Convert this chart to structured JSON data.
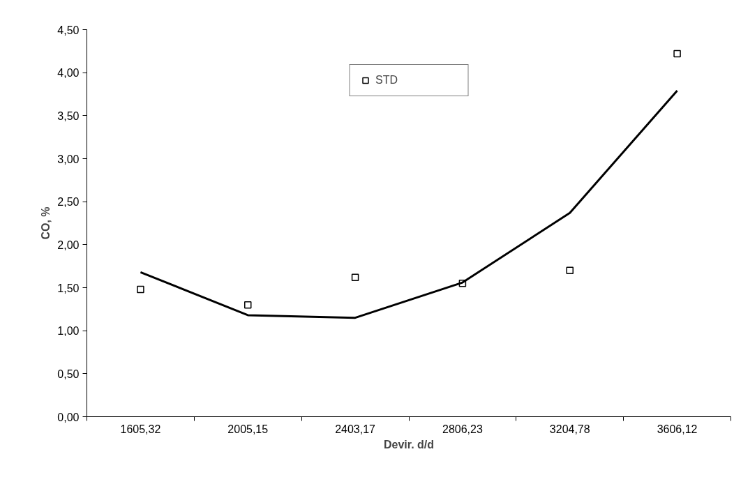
{
  "chart_data": {
    "type": "scatter",
    "xlabel": "Devir. d/d",
    "ylabel": "CO, %",
    "categories": [
      "1605,32",
      "2005,15",
      "2403,17",
      "2806,23",
      "3204,78",
      "3606,12"
    ],
    "series": [
      {
        "name": "STD",
        "color": "#000000",
        "marker": "square",
        "values": [
          1.48,
          1.3,
          1.62,
          1.55,
          1.7,
          4.22
        ]
      },
      {
        "type": "line",
        "color": "#000000",
        "marker": "none",
        "values": [
          1.68,
          1.18,
          1.15,
          1.56,
          2.37,
          3.79
        ]
      }
    ],
    "ylim": [
      0,
      4.5
    ],
    "yticks": [
      {
        "value": 0,
        "label": "0,00"
      },
      {
        "value": 0.5,
        "label": "0,50"
      },
      {
        "value": 1,
        "label": "1,00"
      },
      {
        "value": 1.5,
        "label": "1,50"
      },
      {
        "value": 2,
        "label": "2,00"
      },
      {
        "value": 2.5,
        "label": "2,50"
      },
      {
        "value": 3,
        "label": "3,00"
      },
      {
        "value": 3.5,
        "label": "3,50"
      },
      {
        "value": 4,
        "label": "4,00"
      },
      {
        "value": 4.5,
        "label": "4,50"
      }
    ],
    "grid": false,
    "legend": "top"
  }
}
